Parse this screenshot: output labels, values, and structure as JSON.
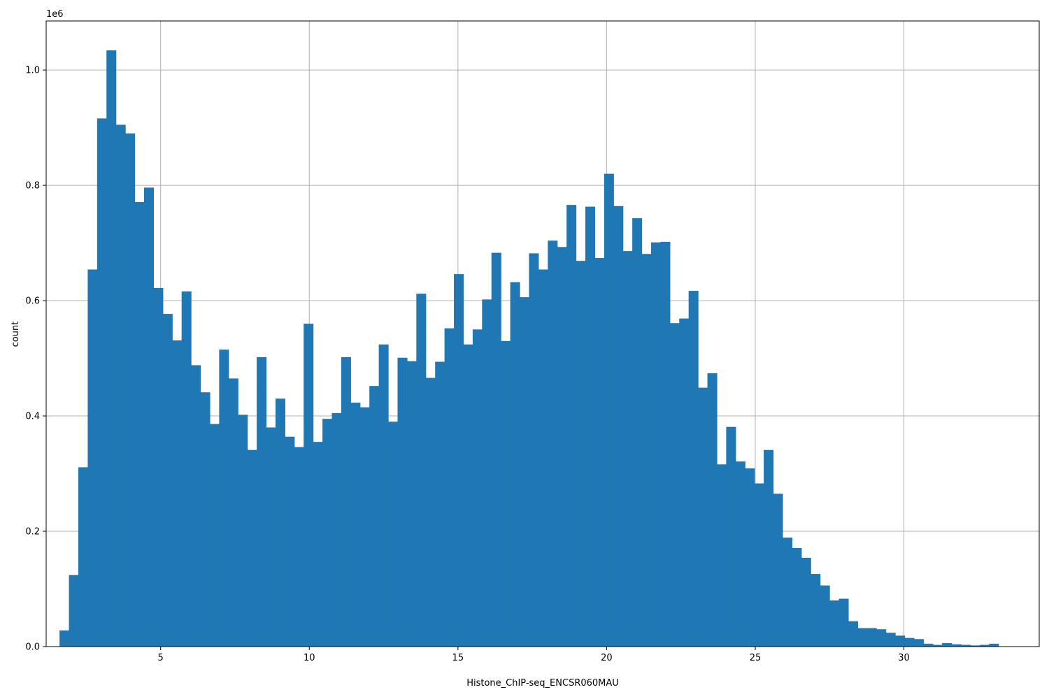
{
  "chart_data": {
    "type": "bar",
    "subtype": "histogram",
    "xlabel": "Histone_ChIP-seq_ENCSR060MAU",
    "ylabel": "count",
    "y_scale_label": "1e6",
    "xlim": [
      1.15,
      34.55
    ],
    "ylim": [
      0,
      1.085
    ],
    "x_ticks": [
      5,
      10,
      15,
      20,
      25,
      30
    ],
    "x_tick_labels": [
      "5",
      "10",
      "15",
      "20",
      "25",
      "30"
    ],
    "y_ticks": [
      0.0,
      0.2,
      0.4,
      0.6,
      0.8,
      1.0
    ],
    "y_tick_labels": [
      "0.0",
      "0.2",
      "0.4",
      "0.6",
      "0.8",
      "1.0"
    ],
    "grid": true,
    "bar_color": "#1f77b4",
    "bin_start": 1.6,
    "bin_width": 0.3158,
    "values": [
      0.028,
      0.124,
      0.311,
      0.654,
      0.916,
      1.034,
      0.905,
      0.89,
      0.771,
      0.796,
      0.622,
      0.577,
      0.531,
      0.616,
      0.488,
      0.441,
      0.386,
      0.515,
      0.465,
      0.402,
      0.341,
      0.502,
      0.38,
      0.43,
      0.364,
      0.346,
      0.56,
      0.355,
      0.395,
      0.405,
      0.502,
      0.423,
      0.415,
      0.452,
      0.524,
      0.39,
      0.501,
      0.495,
      0.612,
      0.466,
      0.494,
      0.552,
      0.646,
      0.524,
      0.55,
      0.602,
      0.683,
      0.53,
      0.632,
      0.606,
      0.682,
      0.654,
      0.704,
      0.693,
      0.766,
      0.669,
      0.763,
      0.674,
      0.82,
      0.764,
      0.686,
      0.743,
      0.681,
      0.701,
      0.702,
      0.561,
      0.569,
      0.617,
      0.449,
      0.474,
      0.316,
      0.381,
      0.321,
      0.309,
      0.283,
      0.341,
      0.265,
      0.189,
      0.171,
      0.154,
      0.126,
      0.106,
      0.08,
      0.083,
      0.044,
      0.032,
      0.032,
      0.03,
      0.024,
      0.019,
      0.015,
      0.013,
      0.005,
      0.003,
      0.006,
      0.004,
      0.003,
      0.002,
      0.003,
      0.005
    ]
  }
}
